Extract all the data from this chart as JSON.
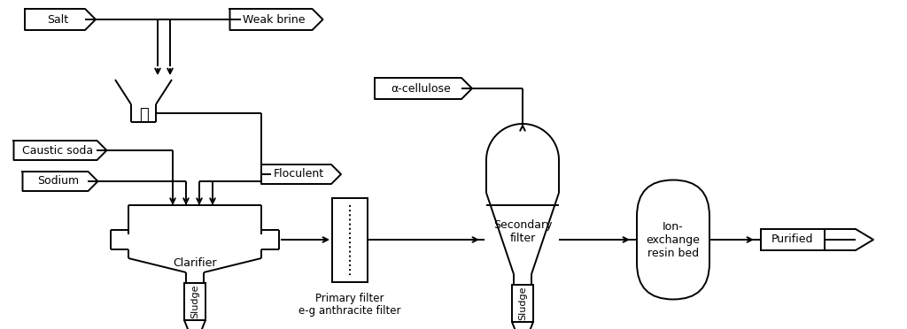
{
  "bg_color": "#ffffff",
  "lc": "#000000",
  "lw": 1.4,
  "labels": {
    "salt": "Salt",
    "weak_brine": "Weak brine",
    "caustic_soda": "Caustic soda",
    "sodium": "Sodium",
    "floculent": "Floculent",
    "alpha_cellulose": "α-cellulose",
    "clarifier": "Clarifier",
    "primary_filter": "Primary filter\ne-g anthracite filter",
    "secondary_filter": "Secondary\nfilter",
    "ion_exchange": "Ion-\nexchange\nresin bed",
    "purified": "Purified",
    "sludge1": "Sludge",
    "sludge2": "Sludge"
  },
  "fontsize": 9
}
